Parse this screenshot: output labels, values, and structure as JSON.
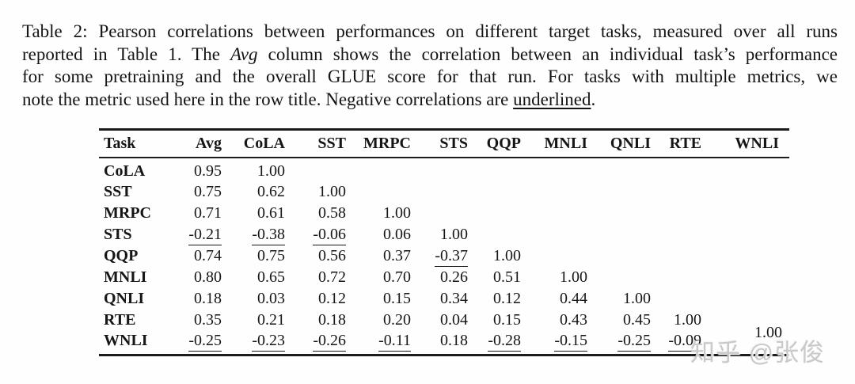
{
  "caption": {
    "line1": "Table 2: Pearson correlations between performances on different target tasks, measured over all runs",
    "line2a": "reported in Table 1. The ",
    "line2_avg": "Avg",
    "line2b": " column shows the correlation between an individual task’s performance",
    "line3": "for some pretraining and the overall GLUE score for that run.  For tasks with multiple metrics, we",
    "line4a": "note the metric used here in the row title. Negative correlations are ",
    "line4_underlined": "underlined",
    "line4b": "."
  },
  "table": {
    "columns": [
      "Task",
      "Avg",
      "CoLA",
      "SST",
      "MRPC",
      "STS",
      "QQP",
      "MNLI",
      "QNLI",
      "RTE",
      "WNLI"
    ],
    "note": "negative values are rendered underlined",
    "rows": [
      {
        "task": "CoLA",
        "values": [
          "0.95",
          "1.00",
          "",
          "",
          "",
          "",
          "",
          "",
          "",
          ""
        ]
      },
      {
        "task": "SST",
        "values": [
          "0.75",
          "0.62",
          "1.00",
          "",
          "",
          "",
          "",
          "",
          "",
          ""
        ]
      },
      {
        "task": "MRPC",
        "values": [
          "0.71",
          "0.61",
          "0.58",
          "1.00",
          "",
          "",
          "",
          "",
          "",
          ""
        ]
      },
      {
        "task": "STS",
        "values": [
          "-0.21",
          "-0.38",
          "-0.06",
          "0.06",
          "1.00",
          "",
          "",
          "",
          "",
          ""
        ]
      },
      {
        "task": "QQP",
        "values": [
          "0.74",
          "0.75",
          "0.56",
          "0.37",
          "-0.37",
          "1.00",
          "",
          "",
          "",
          ""
        ]
      },
      {
        "task": "MNLI",
        "values": [
          "0.80",
          "0.65",
          "0.72",
          "0.70",
          "0.26",
          "0.51",
          "1.00",
          "",
          "",
          ""
        ]
      },
      {
        "task": "QNLI",
        "values": [
          "0.18",
          "0.03",
          "0.12",
          "0.15",
          "0.34",
          "0.12",
          "0.44",
          "1.00",
          "",
          ""
        ]
      },
      {
        "task": "RTE",
        "values": [
          "0.35",
          "0.21",
          "0.18",
          "0.20",
          "0.04",
          "0.15",
          "0.43",
          "0.45",
          "1.00",
          ""
        ]
      },
      {
        "task": "WNLI",
        "values": [
          "-0.25",
          "-0.23",
          "-0.26",
          "-0.11",
          "0.18",
          "-0.28",
          "-0.15",
          "-0.25",
          "-0.09",
          "1.00"
        ]
      }
    ]
  },
  "watermark": {
    "text": "知乎 @张俊"
  },
  "colors": {
    "text": "#151515",
    "rule": "#1c1c1c",
    "watermark": "#c9c9c9",
    "background": "#fefefe"
  }
}
